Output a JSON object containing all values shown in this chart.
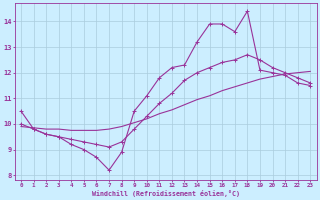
{
  "xlabel": "Windchill (Refroidissement éolien,°C)",
  "background_color": "#cceeff",
  "grid_color": "#aaccdd",
  "line_color": "#993399",
  "xlim": [
    -0.5,
    23.5
  ],
  "ylim": [
    7.8,
    14.7
  ],
  "yticks": [
    8,
    9,
    10,
    11,
    12,
    13,
    14
  ],
  "xticks": [
    0,
    1,
    2,
    3,
    4,
    5,
    6,
    7,
    8,
    9,
    10,
    11,
    12,
    13,
    14,
    15,
    16,
    17,
    18,
    19,
    20,
    21,
    22,
    23
  ],
  "line1_x": [
    0,
    1,
    2,
    3,
    4,
    5,
    6,
    7,
    8,
    9,
    10,
    11,
    12,
    13,
    14,
    15,
    16,
    17,
    18,
    19,
    20,
    21,
    22,
    23
  ],
  "line1_y": [
    10.5,
    9.8,
    9.6,
    9.5,
    9.2,
    9.0,
    8.7,
    8.2,
    8.9,
    10.5,
    11.1,
    11.8,
    12.2,
    12.3,
    13.2,
    13.9,
    13.9,
    13.6,
    14.4,
    12.1,
    12.0,
    11.9,
    11.6,
    11.5
  ],
  "line2_x": [
    0,
    1,
    2,
    3,
    4,
    5,
    6,
    7,
    8,
    9,
    10,
    11,
    12,
    13,
    14,
    15,
    16,
    17,
    18,
    19,
    20,
    21,
    22,
    23
  ],
  "line2_y": [
    10.0,
    9.8,
    9.6,
    9.5,
    9.4,
    9.3,
    9.2,
    9.1,
    9.3,
    9.8,
    10.3,
    10.8,
    11.2,
    11.7,
    12.0,
    12.2,
    12.4,
    12.5,
    12.7,
    12.5,
    12.2,
    12.0,
    11.8,
    11.6
  ],
  "line3_x": [
    0,
    1,
    2,
    3,
    4,
    5,
    6,
    7,
    8,
    9,
    10,
    11,
    12,
    13,
    14,
    15,
    16,
    17,
    18,
    19,
    20,
    21,
    22,
    23
  ],
  "line3_y": [
    9.9,
    9.85,
    9.8,
    9.8,
    9.75,
    9.75,
    9.75,
    9.8,
    9.9,
    10.05,
    10.2,
    10.4,
    10.55,
    10.75,
    10.95,
    11.1,
    11.3,
    11.45,
    11.6,
    11.75,
    11.85,
    11.95,
    12.0,
    12.05
  ],
  "figsize": [
    3.2,
    2.0
  ],
  "dpi": 100
}
